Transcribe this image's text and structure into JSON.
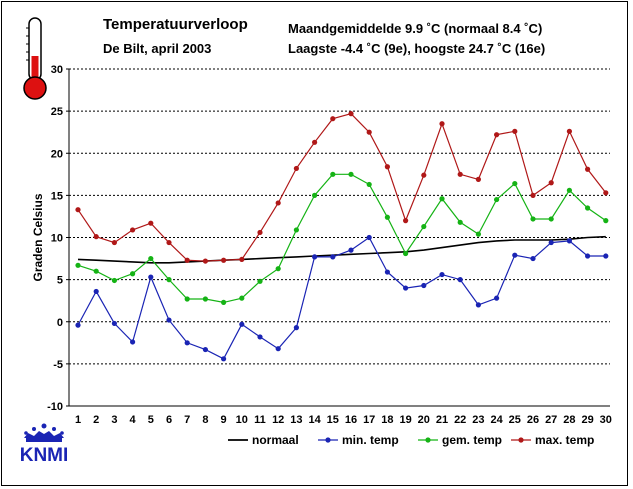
{
  "header": {
    "title": "Temperatuurverloop",
    "subtitle": "De Bilt, april 2003",
    "stat_line1": "Maandgemiddelde 9.9 ˚C (normaal 8.4 ˚C)",
    "stat_line2": "Laagste -4.4 ˚C (9e), hoogste 24.7 ˚C (16e)"
  },
  "logo": {
    "text": "KNMI",
    "icon": "crown-icon"
  },
  "thermometer": {
    "icon": "thermometer-icon",
    "color": "#dd1111"
  },
  "colors": {
    "normaal": "#000000",
    "min": "#1a24b4",
    "gem": "#15b315",
    "max": "#b01818",
    "grid": "#000000"
  },
  "chart_data": {
    "type": "line",
    "title": "Temperatuurverloop",
    "subtitle": "De Bilt, april 2003",
    "xlabel": "",
    "ylabel": "Graden Celsius",
    "ylim": [
      -10,
      30
    ],
    "yticks": [
      30,
      25,
      20,
      15,
      10,
      5,
      0,
      -5,
      -10
    ],
    "grid": true,
    "legend_position": "bottom",
    "x": [
      1,
      2,
      3,
      4,
      5,
      6,
      7,
      8,
      9,
      10,
      11,
      12,
      13,
      14,
      15,
      16,
      17,
      18,
      19,
      20,
      21,
      22,
      23,
      24,
      25,
      26,
      27,
      28,
      29,
      30
    ],
    "series": [
      {
        "name": "normaal",
        "key": "normaal",
        "markers": false,
        "values": [
          7.4,
          7.3,
          7.2,
          7.1,
          7.0,
          7.0,
          7.1,
          7.2,
          7.3,
          7.4,
          7.5,
          7.6,
          7.7,
          7.8,
          7.9,
          8.0,
          8.1,
          8.2,
          8.3,
          8.5,
          8.8,
          9.1,
          9.4,
          9.6,
          9.7,
          9.7,
          9.7,
          9.8,
          10.0,
          10.1
        ]
      },
      {
        "name": "min. temp",
        "key": "min",
        "markers": true,
        "values": [
          -0.4,
          3.6,
          -0.2,
          -2.4,
          5.3,
          0.2,
          -2.5,
          -3.3,
          -4.4,
          -0.3,
          -1.8,
          -3.2,
          -0.7,
          7.7,
          7.7,
          8.5,
          10.0,
          5.9,
          4.0,
          4.3,
          5.6,
          5.0,
          2.0,
          2.8,
          7.9,
          7.5,
          9.4,
          9.6,
          7.8,
          7.8
        ]
      },
      {
        "name": "gem. temp",
        "key": "gem",
        "markers": true,
        "values": [
          6.7,
          6.0,
          4.9,
          5.7,
          7.5,
          5.0,
          2.7,
          2.7,
          2.3,
          2.8,
          4.8,
          6.3,
          10.9,
          15.0,
          17.5,
          17.5,
          16.3,
          12.4,
          8.1,
          11.3,
          14.6,
          11.8,
          10.4,
          14.5,
          16.4,
          12.2,
          12.2,
          15.6,
          13.5,
          12.0
        ]
      },
      {
        "name": "max. temp",
        "key": "max",
        "markers": true,
        "values": [
          13.3,
          10.1,
          9.4,
          10.9,
          11.7,
          9.4,
          7.3,
          7.2,
          7.3,
          7.4,
          10.6,
          14.1,
          18.2,
          21.3,
          24.1,
          24.7,
          22.5,
          18.4,
          12.0,
          17.4,
          23.5,
          17.5,
          16.9,
          22.2,
          22.6,
          15.0,
          16.5,
          22.6,
          18.1,
          15.3
        ]
      }
    ]
  }
}
